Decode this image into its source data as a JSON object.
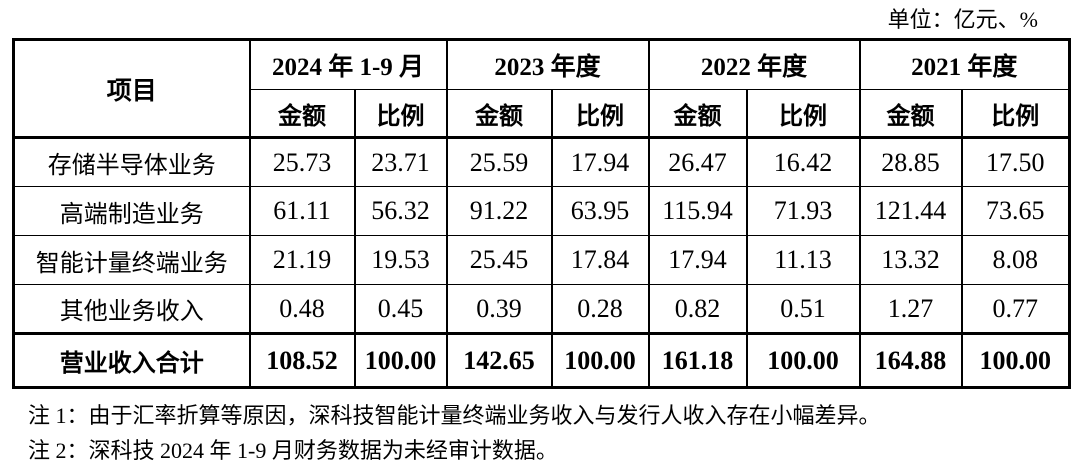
{
  "unit_label": "单位：亿元、%",
  "table": {
    "item_header": "项目",
    "measure_labels": [
      "金额",
      "比例"
    ],
    "periods": [
      "2024 年 1-9 月",
      "2023 年度",
      "2022 年度",
      "2021 年度"
    ],
    "rows": [
      {
        "item": "存储半导体业务",
        "values": [
          "25.73",
          "23.71",
          "25.59",
          "17.94",
          "26.47",
          "16.42",
          "28.85",
          "17.50"
        ]
      },
      {
        "item": "高端制造业务",
        "values": [
          "61.11",
          "56.32",
          "91.22",
          "63.95",
          "115.94",
          "71.93",
          "121.44",
          "73.65"
        ]
      },
      {
        "item": "智能计量终端业务",
        "values": [
          "21.19",
          "19.53",
          "25.45",
          "17.84",
          "17.94",
          "11.13",
          "13.32",
          "8.08"
        ]
      },
      {
        "item": "其他业务收入",
        "values": [
          "0.48",
          "0.45",
          "0.39",
          "0.28",
          "0.82",
          "0.51",
          "1.27",
          "0.77"
        ]
      }
    ],
    "total_row": {
      "item": "营业收入合计",
      "values": [
        "108.52",
        "100.00",
        "142.65",
        "100.00",
        "161.18",
        "100.00",
        "164.88",
        "100.00"
      ]
    }
  },
  "notes": [
    "注 1：由于汇率折算等原因，深科技智能计量终端业务收入与发行人收入存在小幅差异。",
    "注 2：深科技 2024 年 1-9 月财务数据为未经审计数据。"
  ],
  "colors": {
    "text": "#000000",
    "border": "#000000",
    "background": "#ffffff"
  }
}
